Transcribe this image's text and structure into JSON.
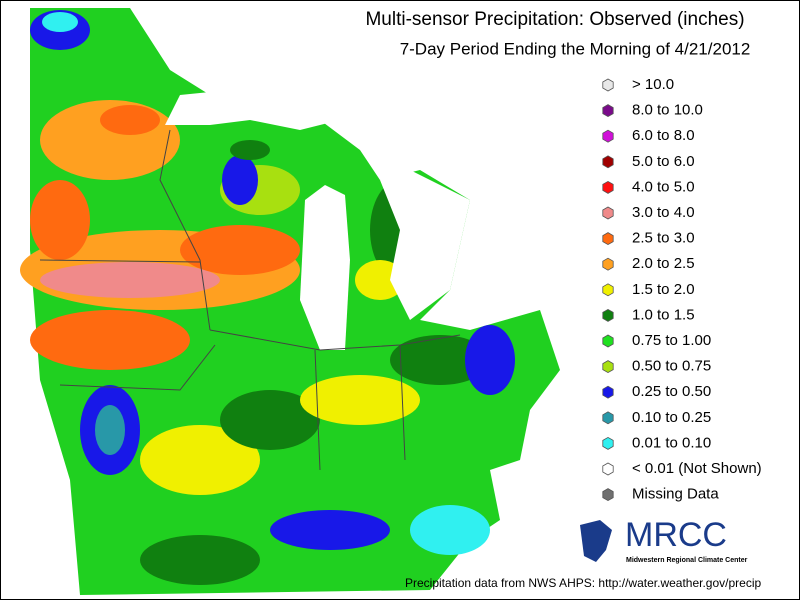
{
  "header": {
    "title": "Multi-sensor Precipitation: Observed (inches)",
    "subtitle": "7-Day Period Ending the Morning of 4/21/2012"
  },
  "legend": [
    {
      "label": "> 10.0",
      "color": "#e8e8e8"
    },
    {
      "label": "8.0 to 10.0",
      "color": "#7a0a8a"
    },
    {
      "label": "6.0 to 8.0",
      "color": "#d010d8"
    },
    {
      "label": "5.0 to 6.0",
      "color": "#a00000"
    },
    {
      "label": "4.0 to 5.0",
      "color": "#ff1010"
    },
    {
      "label": "3.0 to 4.0",
      "color": "#f08a8a"
    },
    {
      "label": "2.5 to 3.0",
      "color": "#ff6a10"
    },
    {
      "label": "2.0 to 2.5",
      "color": "#ffa020"
    },
    {
      "label": "1.5 to 2.0",
      "color": "#f0f000"
    },
    {
      "label": "1.0 to 1.5",
      "color": "#108010"
    },
    {
      "label": "0.75 to 1.00",
      "color": "#20e020"
    },
    {
      "label": "0.50 to 0.75",
      "color": "#a8e010"
    },
    {
      "label": "0.25 to 0.50",
      "color": "#1818e8"
    },
    {
      "label": "0.10 to 0.25",
      "color": "#2898a8"
    },
    {
      "label": "0.01 to 0.10",
      "color": "#30f0f0"
    },
    {
      "label": "< 0.01 (Not Shown)",
      "color": "#ffffff"
    },
    {
      "label": "Missing Data",
      "color": "#707070"
    }
  ],
  "logo": {
    "name": "MRCC",
    "full_name": "Midwestern Regional Climate Center"
  },
  "footer": "Precipitation data from NWS AHPS:  http://water.weather.gov/precip"
}
